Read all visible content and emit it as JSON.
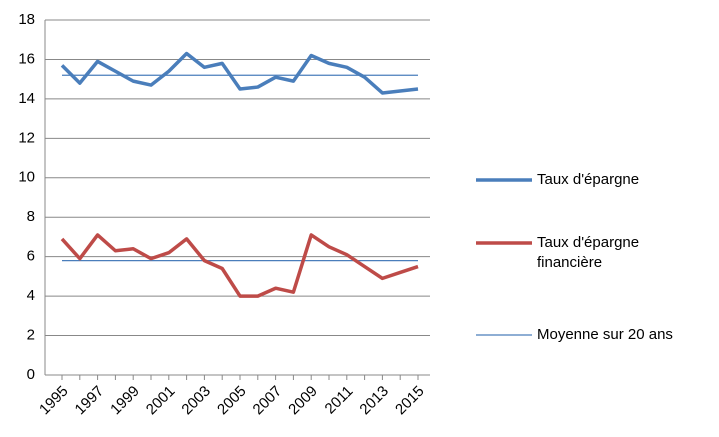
{
  "chart_data": {
    "type": "line",
    "categories": [
      "1995",
      null,
      "1997",
      null,
      "1999",
      null,
      "2001",
      null,
      "2003",
      null,
      "2005",
      null,
      "2007",
      null,
      "2009",
      null,
      "2011",
      null,
      "2013",
      null,
      "2015"
    ],
    "series": [
      {
        "name": "Taux d'épargne",
        "color": "#4a7ebb",
        "values": [
          15.7,
          14.8,
          15.9,
          15.4,
          14.9,
          14.7,
          15.4,
          16.3,
          15.6,
          15.8,
          14.5,
          14.6,
          15.1,
          14.9,
          16.2,
          15.8,
          15.6,
          15.1,
          14.3,
          14.4,
          14.5
        ]
      },
      {
        "name": "Taux d'épargne financière",
        "color": "#be4b48",
        "values": [
          6.9,
          5.9,
          7.1,
          6.3,
          6.4,
          5.9,
          6.2,
          6.9,
          5.8,
          5.4,
          4.0,
          4.0,
          4.4,
          4.2,
          7.1,
          6.5,
          6.1,
          5.5,
          4.9,
          5.2,
          5.5
        ]
      }
    ],
    "reference_lines": {
      "name": "Moyenne sur 20 ans",
      "color": "#4a7ebb",
      "values": [
        15.2,
        5.8
      ]
    },
    "ylim": [
      0,
      18
    ],
    "yticks": [
      0,
      2,
      4,
      6,
      8,
      10,
      12,
      14,
      16,
      18
    ],
    "grid": true
  }
}
